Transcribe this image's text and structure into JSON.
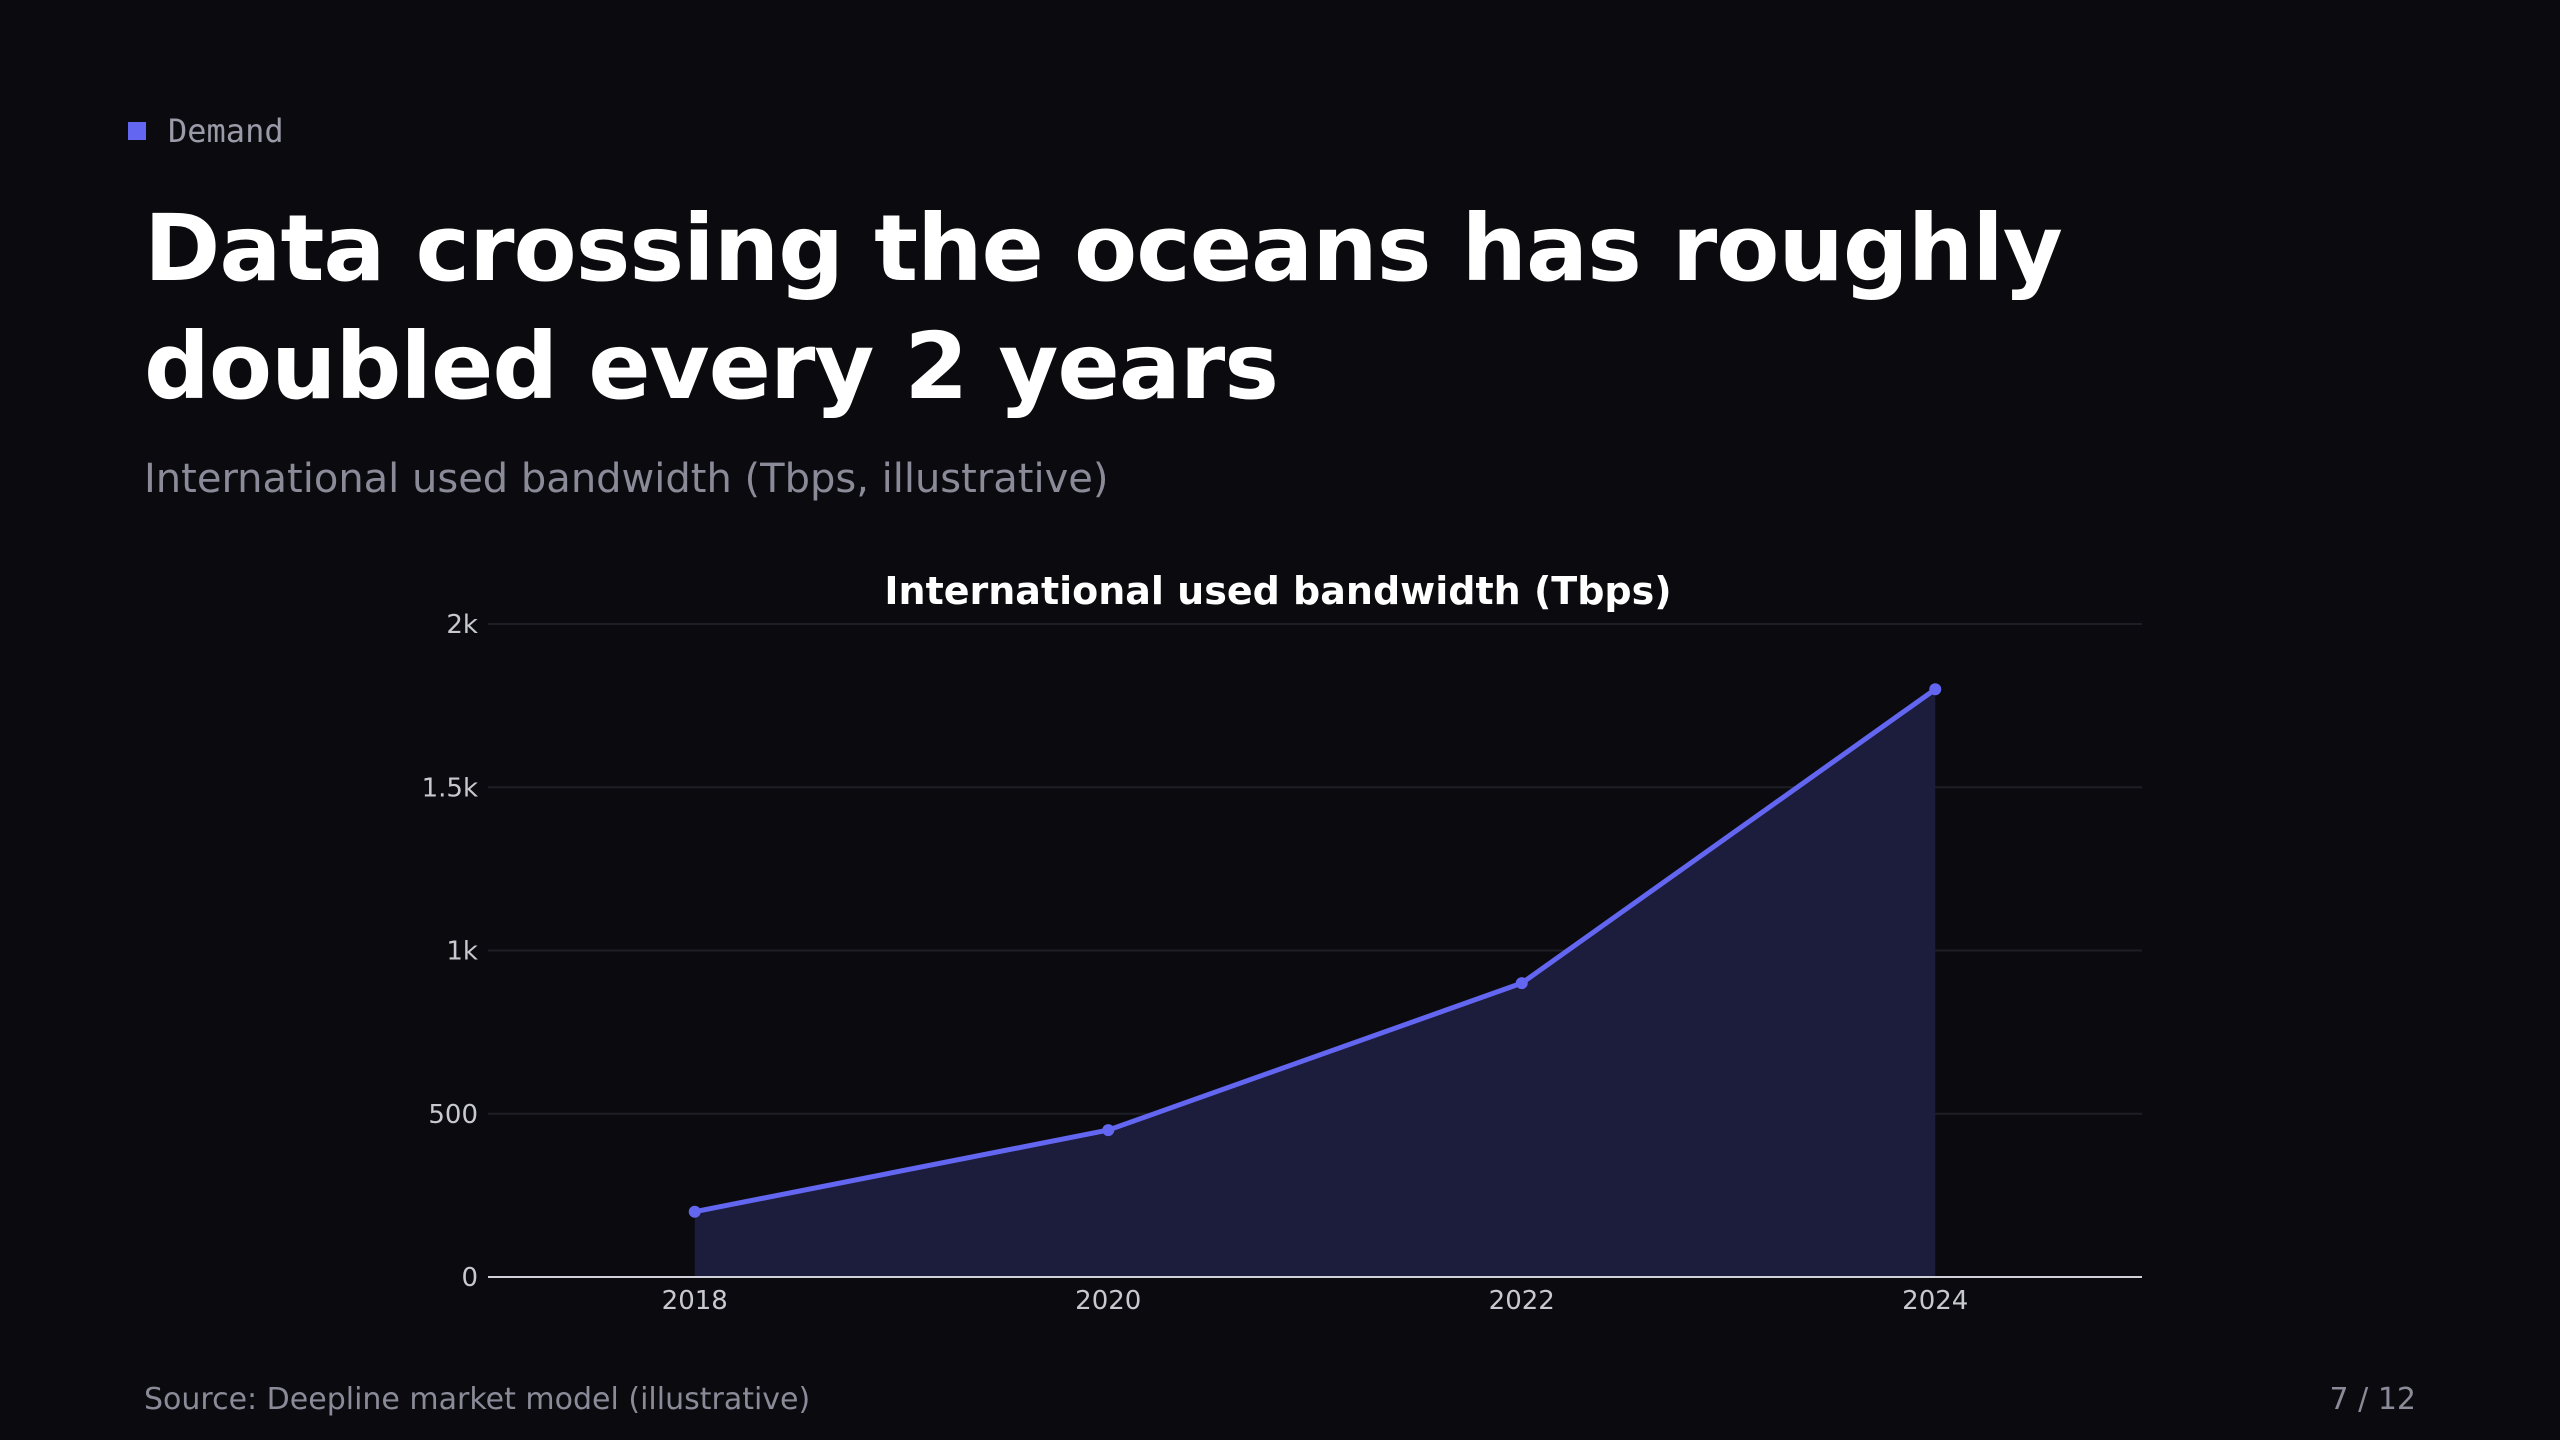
{
  "kicker": {
    "label": "Demand"
  },
  "header": {
    "title": "Data crossing the oceans has roughly doubled every 2 years",
    "subtitle": "International used bandwidth (Tbps, illustrative)"
  },
  "footer": {
    "source": "Source: Deepline market model (illustrative)",
    "page": "7 / 12"
  },
  "colors": {
    "accent": "#6366f1",
    "area_fill": "#1c1c3c",
    "background": "#0b0b0f",
    "grid": "#1e1e26",
    "axis": "#d0d0d8",
    "tick_text": "#c8c8d0"
  },
  "chart_data": {
    "type": "area",
    "title": "International used bandwidth (Tbps)",
    "xlabel": "",
    "ylabel": "",
    "x": [
      2018,
      2020,
      2022,
      2024
    ],
    "series": [
      {
        "values": [
          200,
          450,
          900,
          1800
        ]
      }
    ],
    "xlim": [
      2017,
      2025
    ],
    "ylim": [
      0,
      2000
    ],
    "x_ticks": [
      2018,
      2020,
      2022,
      2024
    ],
    "x_tick_labels": [
      "2018",
      "2020",
      "2022",
      "2024"
    ],
    "y_ticks": [
      0,
      500,
      1000,
      1500,
      2000
    ],
    "y_tick_labels": [
      "0",
      "500",
      "1k",
      "1.5k",
      "2k"
    ],
    "grid": true,
    "legend": "none"
  }
}
